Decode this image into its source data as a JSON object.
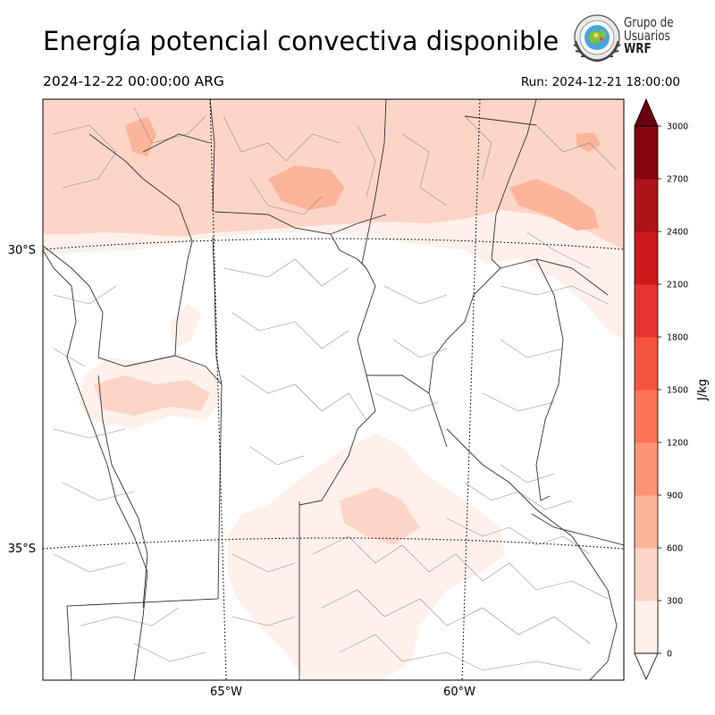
{
  "header": {
    "title": "Energía potencial convectiva disponible",
    "valid_time": "2024-12-22 00:00:00 ARG",
    "run_time": "Run: 2024-12-21 18:00:00"
  },
  "logo": {
    "line1": "Grupo de",
    "line2": "Usuarios",
    "line3": "WRF",
    "icon": "wrf-globe-laurel-icon"
  },
  "map": {
    "lat_labels": [
      "30°S",
      "35°S"
    ],
    "lon_labels": [
      "65°W",
      "60°W"
    ],
    "gridline_style": "dotted"
  },
  "colorbar": {
    "unit": "J/kg",
    "extend": "max",
    "ticks": [
      "0",
      "300",
      "600",
      "900",
      "1200",
      "1500",
      "1800",
      "2100",
      "2400",
      "2700",
      "3000"
    ],
    "colors": [
      "#fff0eb",
      "#fdd5c6",
      "#fcb49b",
      "#fc9474",
      "#fb7455",
      "#f45440",
      "#e73430",
      "#cc191c",
      "#ad1418",
      "#840711"
    ],
    "extend_color": "#6a000d"
  }
}
